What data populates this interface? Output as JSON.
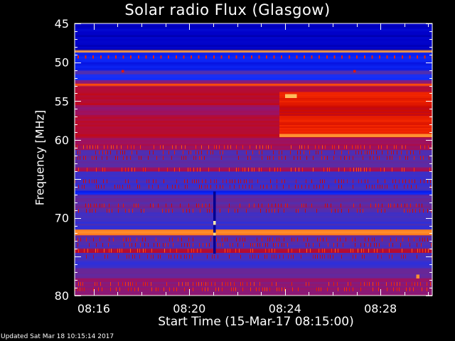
{
  "chart_data": {
    "type": "heatmap",
    "title": "Solar radio Flux (Glasgow)",
    "xlabel": "Start Time (15-Mar-17 08:15:00)",
    "ylabel": "Frequency [MHz]",
    "x_unit": "time HH:MM",
    "xlim": [
      "08:15:12",
      "08:30:10"
    ],
    "ylim": [
      45,
      80
    ],
    "y_inverted": true,
    "x_ticks": [
      "08:16",
      "08:20",
      "08:24",
      "08:28"
    ],
    "y_ticks": [
      45,
      50,
      55,
      60,
      70,
      80
    ],
    "colormap": [
      "#000060",
      "#0000cc",
      "#1030ff",
      "#5030b0",
      "#a01060",
      "#cc0800",
      "#ff3000",
      "#ff8020",
      "#ffd070",
      "#ffffe0"
    ],
    "bands": [
      {
        "from": 45.0,
        "to": 48.4,
        "level": 0.1
      },
      {
        "from": 48.4,
        "to": 48.7,
        "level": 0.82
      },
      {
        "from": 48.7,
        "to": 49.4,
        "level": 0.2
      },
      {
        "from": 49.4,
        "to": 51.1,
        "level": 0.18
      },
      {
        "from": 51.1,
        "to": 51.6,
        "level": 0.34
      },
      {
        "from": 51.6,
        "to": 52.3,
        "level": 0.22
      },
      {
        "from": 52.3,
        "to": 52.7,
        "level": 0.4
      },
      {
        "from": 52.7,
        "to": 53.1,
        "level": 0.72
      },
      {
        "from": 53.1,
        "to": 55.5,
        "level": 0.5
      },
      {
        "from": 55.5,
        "to": 56.8,
        "level": 0.43
      },
      {
        "from": 56.8,
        "to": 59.7,
        "level": 0.5
      },
      {
        "from": 59.7,
        "to": 61.3,
        "level": 0.46
      },
      {
        "from": 61.3,
        "to": 63.5,
        "level": 0.34
      },
      {
        "from": 63.5,
        "to": 64.1,
        "level": 0.46
      },
      {
        "from": 64.1,
        "to": 66.5,
        "level": 0.3
      },
      {
        "from": 66.5,
        "to": 67.1,
        "level": 0.2
      },
      {
        "from": 67.1,
        "to": 69.3,
        "level": 0.35
      },
      {
        "from": 69.3,
        "to": 71.5,
        "level": 0.3
      },
      {
        "from": 71.5,
        "to": 72.3,
        "level": 0.78
      },
      {
        "from": 72.3,
        "to": 73.9,
        "level": 0.34
      },
      {
        "from": 73.9,
        "to": 74.5,
        "level": 0.48
      },
      {
        "from": 74.5,
        "to": 76.5,
        "level": 0.3
      },
      {
        "from": 76.5,
        "to": 77.8,
        "level": 0.36
      },
      {
        "from": 77.8,
        "to": 80.0,
        "level": 0.42
      }
    ],
    "striations": [
      60.9,
      61.6,
      62.3,
      63.8,
      65.3,
      66.0,
      68.4,
      69.1,
      72.8,
      73.5,
      74.2,
      75.0,
      78.5,
      79.2
    ],
    "events": [
      {
        "name": "step increase 53.8-59.6 MHz",
        "t_start": "08:23:46",
        "t_end": "08:30:10",
        "f_low": 53.8,
        "f_high": 59.6,
        "delta_level": 0.12
      },
      {
        "name": "bright line 59.4 MHz",
        "t_start": "08:23:46",
        "t_end": "08:30:10",
        "f_low": 59.2,
        "f_high": 59.6,
        "level": 0.8
      },
      {
        "name": "bright spot 54.3 MHz",
        "t_start": "08:24:00",
        "t_end": "08:24:30",
        "f_low": 54.1,
        "f_high": 54.6,
        "level": 0.86
      },
      {
        "name": "interference spike",
        "t_start": "08:21:00",
        "t_end": "08:21:06",
        "f_low": 66.6,
        "f_high": 74.6,
        "level": 0.05
      },
      {
        "name": "spike bright point",
        "t_start": "08:21:00",
        "t_end": "08:21:06",
        "f_low": 70.4,
        "f_high": 70.9,
        "level": 0.95
      },
      {
        "name": "spike bright point 2",
        "t_start": "08:21:00",
        "t_end": "08:21:06",
        "f_low": 71.9,
        "f_high": 72.3,
        "level": 0.9
      },
      {
        "name": "spot",
        "t_start": "08:17:10",
        "t_end": "08:17:16",
        "f_low": 51.0,
        "f_high": 51.3,
        "level": 0.6
      },
      {
        "name": "spot",
        "t_start": "08:26:52",
        "t_end": "08:26:58",
        "f_low": 51.0,
        "f_high": 51.3,
        "level": 0.6
      },
      {
        "name": "spot",
        "t_start": "08:29:30",
        "t_end": "08:29:38",
        "f_low": 77.3,
        "f_high": 77.8,
        "level": 0.8
      }
    ],
    "dot_row": {
      "freq": 49.3,
      "level": 0.62
    }
  },
  "footer": {
    "updated": "Updated Sat Mar 18 10:15:14 2017"
  }
}
